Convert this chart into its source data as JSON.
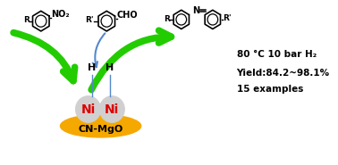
{
  "bg_color": "#ffffff",
  "ni_color": "#d0d0d0",
  "ni_border_color": "#aaaaaa",
  "ni_text_color": "#dd0000",
  "support_color": "#f5a800",
  "support_text_color": "#000000",
  "support_label": "CN-MgO",
  "ni_label": "Ni",
  "conditions_line1": "80 °C 10 bar H₂",
  "conditions_line2": "Yield:84.2~98.1%",
  "conditions_line3": "15 examples",
  "arrow_green": "#22cc00",
  "arrow_blue": "#5588cc",
  "text_color": "#000000",
  "figsize": [
    3.78,
    1.85
  ],
  "dpi": 100
}
